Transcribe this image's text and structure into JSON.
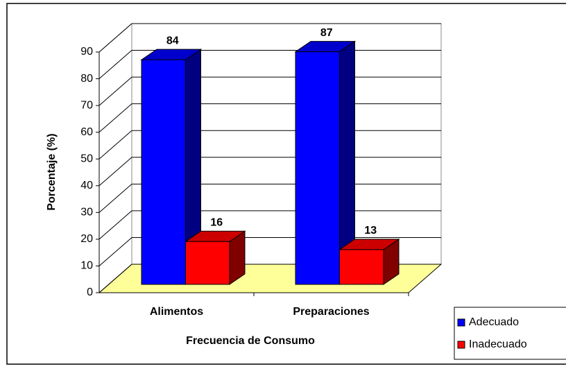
{
  "chart_data": {
    "type": "bar3d",
    "x_label": "Frecuencia de Consumo",
    "y_label": "Porcentaje (%)",
    "categories": [
      "Alimentos",
      "Preparaciones"
    ],
    "series": [
      {
        "name": "Adecuado",
        "color": "#0000ff",
        "values": [
          84,
          87
        ]
      },
      {
        "name": "Inadecuado",
        "color": "#ff0000",
        "values": [
          16,
          13
        ]
      }
    ],
    "ylim": [
      0,
      90
    ],
    "yticks": [
      0,
      10,
      20,
      30,
      40,
      50,
      60,
      70,
      80,
      90
    ],
    "grid": true,
    "floor_color": "#ffff99"
  }
}
